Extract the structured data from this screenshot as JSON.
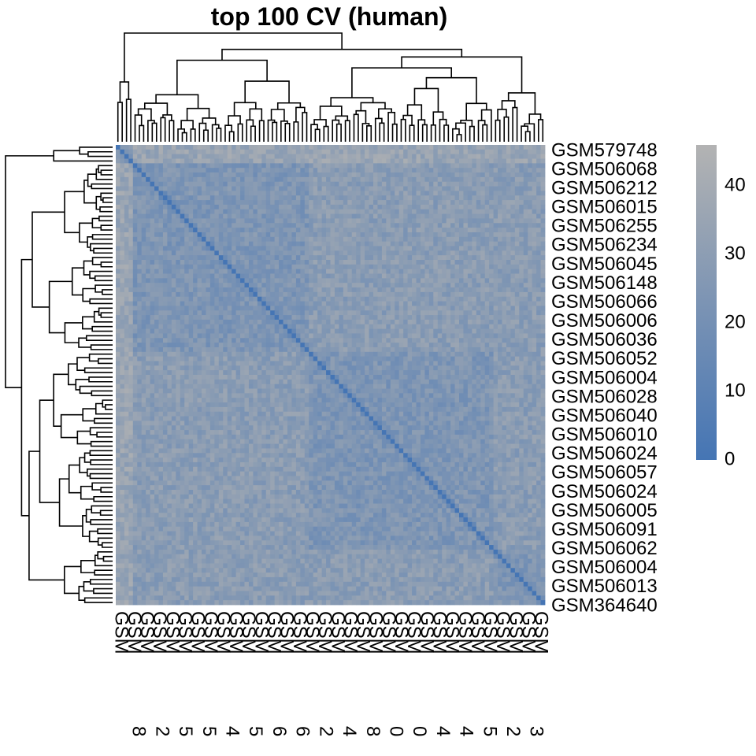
{
  "chart_data": {
    "type": "heatmap",
    "title": "top 100 CV (human)",
    "matrix_size": 100,
    "diagonal_value": 0,
    "typical_offdiagonal_range": [
      14,
      34
    ],
    "color_scale": {
      "min": 0,
      "max": 46,
      "low_color": "#4575b4",
      "high_color": "#b3b3b3",
      "ticks": [
        "0",
        "10",
        "20",
        "30",
        "40"
      ]
    },
    "row_labels_visible": [
      "GSM579748",
      "GSM506068",
      "GSM506212",
      "GSM506015",
      "GSM506255",
      "GSM506234",
      "GSM506045",
      "GSM506148",
      "GSM506066",
      "GSM506006",
      "GSM506036",
      "GSM506052",
      "GSM506004",
      "GSM506028",
      "GSM506040",
      "GSM506010",
      "GSM506024",
      "GSM506057",
      "GSM506024",
      "GSM506005",
      "GSM506091",
      "GSM506062",
      "GSM506004",
      "GSM506013",
      "GSM364640"
    ],
    "column_label_prefix": "GSM",
    "column_label_endings": [
      "8",
      "2",
      "5",
      "5",
      "4",
      "5",
      "6",
      "6",
      "2",
      "4",
      "8",
      "0",
      "0",
      "4",
      "4",
      "5",
      "2",
      "3"
    ],
    "has_row_dendrogram": true,
    "has_column_dendrogram": true,
    "legend": "right"
  }
}
